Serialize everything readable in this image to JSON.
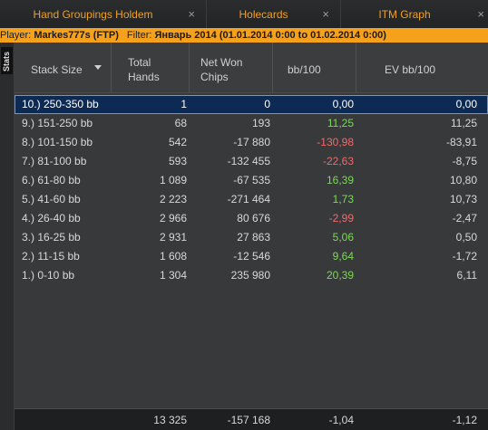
{
  "tabs": [
    {
      "label": "Hand Groupings Holdem",
      "close": "×"
    },
    {
      "label": "Holecards",
      "close": "×"
    },
    {
      "label": "ITM Graph",
      "close": "×"
    }
  ],
  "filter": {
    "player_label": "Player:",
    "player_value": "Markes777s (FTP)",
    "filter_label": "Filter:",
    "filter_value": "Январь 2014 (01.01.2014 0:00 to 01.02.2014 0:00)"
  },
  "side_tab": "Stats",
  "columns": {
    "stack_size": "Stack Size",
    "total_hands_1": "Total",
    "total_hands_2": "Hands",
    "net_won_1": "Net Won",
    "net_won_2": "Chips",
    "bb100": "bb/100",
    "ev_bb100": "EV bb/100"
  },
  "rows": [
    {
      "stack": "10.) 250-350 bb",
      "hands": "1",
      "net": "0",
      "bb100": "0,00",
      "ev": "0,00",
      "sign": "zero"
    },
    {
      "stack": "9.) 151-250 bb",
      "hands": "68",
      "net": "193",
      "bb100": "11,25",
      "ev": "11,25",
      "sign": "pos"
    },
    {
      "stack": "8.) 101-150 bb",
      "hands": "542",
      "net": "-17 880",
      "bb100": "-130,98",
      "ev": "-83,91",
      "sign": "neg"
    },
    {
      "stack": "7.) 81-100 bb",
      "hands": "593",
      "net": "-132 455",
      "bb100": "-22,63",
      "ev": "-8,75",
      "sign": "neg"
    },
    {
      "stack": "6.) 61-80 bb",
      "hands": "1 089",
      "net": "-67 535",
      "bb100": "16,39",
      "ev": "10,80",
      "sign": "pos"
    },
    {
      "stack": "5.) 41-60 bb",
      "hands": "2 223",
      "net": "-271 464",
      "bb100": "1,73",
      "ev": "10,73",
      "sign": "pos"
    },
    {
      "stack": "4.) 26-40 bb",
      "hands": "2 966",
      "net": "80 676",
      "bb100": "-2,99",
      "ev": "-2,47",
      "sign": "neg"
    },
    {
      "stack": "3.) 16-25 bb",
      "hands": "2 931",
      "net": "27 863",
      "bb100": "5,06",
      "ev": "0,50",
      "sign": "pos"
    },
    {
      "stack": "2.) 11-15 bb",
      "hands": "1 608",
      "net": "-12 546",
      "bb100": "9,64",
      "ev": "-1,72",
      "sign": "pos"
    },
    {
      "stack": "1.) 0-10 bb",
      "hands": "1 304",
      "net": "235 980",
      "bb100": "20,39",
      "ev": "6,11",
      "sign": "pos"
    }
  ],
  "totals": {
    "hands": "13 325",
    "net": "-157 168",
    "bb100": "-1,04",
    "ev": "-1,12"
  },
  "colors": {
    "accent": "#f5a11c",
    "tab_text": "#f0a020",
    "positive": "#7ed957",
    "negative": "#f06a6a",
    "selection": "#0d2a55"
  }
}
